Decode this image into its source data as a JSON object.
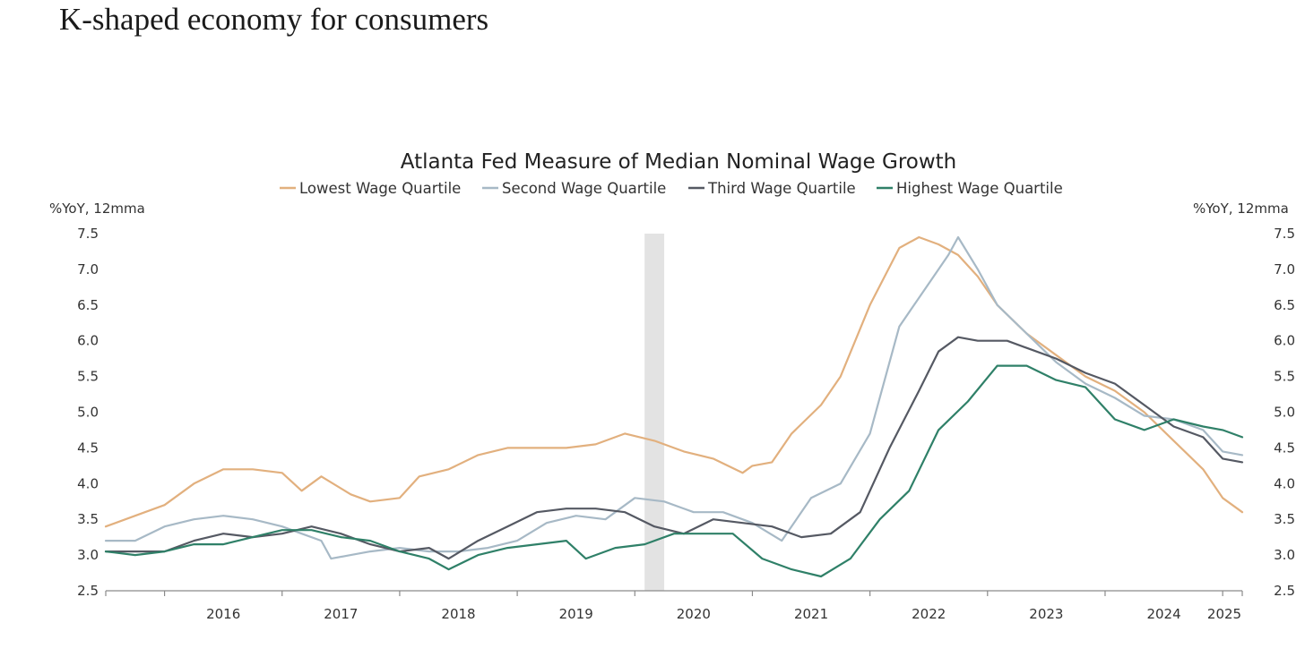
{
  "slide": {
    "title": "K-shaped economy for consumers"
  },
  "chart_data": {
    "type": "line",
    "title": "Atlanta Fed Measure of Median Nominal Wage Growth",
    "ylabel_left": "%YoY, 12mma",
    "ylabel_right": "%YoY, 12mma",
    "ylim": [
      2.5,
      7.5
    ],
    "yticks": [
      "2.5",
      "3.0",
      "3.5",
      "4.0",
      "4.5",
      "5.0",
      "5.5",
      "6.0",
      "6.5",
      "7.0",
      "7.5"
    ],
    "xticks": [
      "2016",
      "2017",
      "2018",
      "2019",
      "2020",
      "2021",
      "2022",
      "2023",
      "2024",
      "2025"
    ],
    "x_domain": [
      "2015-07",
      "2025-03"
    ],
    "legend_position": "top-center",
    "grid": false,
    "shaded_period": {
      "start": "2020-02",
      "end": "2020-04",
      "color": "#e3e3e3"
    },
    "series": [
      {
        "name": "Lowest Wage Quartile",
        "color": "#e2b07e",
        "points": [
          [
            "2015-07",
            3.4
          ],
          [
            "2015-10",
            3.55
          ],
          [
            "2016-01",
            3.7
          ],
          [
            "2016-04",
            4.0
          ],
          [
            "2016-07",
            4.2
          ],
          [
            "2016-10",
            4.2
          ],
          [
            "2017-01",
            4.15
          ],
          [
            "2017-03",
            3.9
          ],
          [
            "2017-05",
            4.1
          ],
          [
            "2017-08",
            3.85
          ],
          [
            "2017-10",
            3.75
          ],
          [
            "2018-01",
            3.8
          ],
          [
            "2018-03",
            4.1
          ],
          [
            "2018-06",
            4.2
          ],
          [
            "2018-09",
            4.4
          ],
          [
            "2018-12",
            4.5
          ],
          [
            "2019-03",
            4.5
          ],
          [
            "2019-06",
            4.5
          ],
          [
            "2019-09",
            4.55
          ],
          [
            "2019-12",
            4.7
          ],
          [
            "2020-03",
            4.6
          ],
          [
            "2020-06",
            4.45
          ],
          [
            "2020-09",
            4.35
          ],
          [
            "2020-12",
            4.15
          ],
          [
            "2021-01",
            4.25
          ],
          [
            "2021-03",
            4.3
          ],
          [
            "2021-05",
            4.7
          ],
          [
            "2021-08",
            5.1
          ],
          [
            "2021-10",
            5.5
          ],
          [
            "2022-01",
            6.5
          ],
          [
            "2022-04",
            7.3
          ],
          [
            "2022-06",
            7.45
          ],
          [
            "2022-08",
            7.35
          ],
          [
            "2022-10",
            7.2
          ],
          [
            "2022-12",
            6.9
          ],
          [
            "2023-02",
            6.5
          ],
          [
            "2023-05",
            6.1
          ],
          [
            "2023-08",
            5.8
          ],
          [
            "2023-11",
            5.5
          ],
          [
            "2024-02",
            5.3
          ],
          [
            "2024-05",
            5.0
          ],
          [
            "2024-08",
            4.6
          ],
          [
            "2024-11",
            4.2
          ],
          [
            "2025-01",
            3.8
          ],
          [
            "2025-03",
            3.6
          ]
        ]
      },
      {
        "name": "Second Wage Quartile",
        "color": "#a7b9c6",
        "points": [
          [
            "2015-07",
            3.2
          ],
          [
            "2015-10",
            3.2
          ],
          [
            "2016-01",
            3.4
          ],
          [
            "2016-04",
            3.5
          ],
          [
            "2016-07",
            3.55
          ],
          [
            "2016-10",
            3.5
          ],
          [
            "2017-01",
            3.4
          ],
          [
            "2017-03",
            3.3
          ],
          [
            "2017-05",
            3.2
          ],
          [
            "2017-06",
            2.95
          ],
          [
            "2017-08",
            3.0
          ],
          [
            "2017-10",
            3.05
          ],
          [
            "2018-01",
            3.1
          ],
          [
            "2018-04",
            3.05
          ],
          [
            "2018-07",
            3.05
          ],
          [
            "2018-10",
            3.1
          ],
          [
            "2019-01",
            3.2
          ],
          [
            "2019-04",
            3.45
          ],
          [
            "2019-07",
            3.55
          ],
          [
            "2019-10",
            3.5
          ],
          [
            "2020-01",
            3.8
          ],
          [
            "2020-04",
            3.75
          ],
          [
            "2020-07",
            3.6
          ],
          [
            "2020-10",
            3.6
          ],
          [
            "2021-01",
            3.45
          ],
          [
            "2021-04",
            3.2
          ],
          [
            "2021-07",
            3.8
          ],
          [
            "2021-10",
            4.0
          ],
          [
            "2022-01",
            4.7
          ],
          [
            "2022-04",
            6.2
          ],
          [
            "2022-07",
            6.8
          ],
          [
            "2022-09",
            7.2
          ],
          [
            "2022-10",
            7.45
          ],
          [
            "2022-12",
            7.0
          ],
          [
            "2023-02",
            6.5
          ],
          [
            "2023-05",
            6.1
          ],
          [
            "2023-08",
            5.7
          ],
          [
            "2023-11",
            5.4
          ],
          [
            "2024-02",
            5.2
          ],
          [
            "2024-05",
            4.95
          ],
          [
            "2024-08",
            4.9
          ],
          [
            "2024-11",
            4.75
          ],
          [
            "2025-01",
            4.45
          ],
          [
            "2025-03",
            4.4
          ]
        ]
      },
      {
        "name": "Third Wage Quartile",
        "color": "#555963",
        "points": [
          [
            "2015-07",
            3.05
          ],
          [
            "2015-10",
            3.05
          ],
          [
            "2016-01",
            3.05
          ],
          [
            "2016-04",
            3.2
          ],
          [
            "2016-07",
            3.3
          ],
          [
            "2016-10",
            3.25
          ],
          [
            "2017-01",
            3.3
          ],
          [
            "2017-04",
            3.4
          ],
          [
            "2017-07",
            3.3
          ],
          [
            "2017-10",
            3.15
          ],
          [
            "2018-01",
            3.05
          ],
          [
            "2018-04",
            3.1
          ],
          [
            "2018-06",
            2.95
          ],
          [
            "2018-09",
            3.2
          ],
          [
            "2018-12",
            3.4
          ],
          [
            "2019-03",
            3.6
          ],
          [
            "2019-06",
            3.65
          ],
          [
            "2019-09",
            3.65
          ],
          [
            "2019-12",
            3.6
          ],
          [
            "2020-03",
            3.4
          ],
          [
            "2020-06",
            3.3
          ],
          [
            "2020-09",
            3.5
          ],
          [
            "2020-12",
            3.45
          ],
          [
            "2021-03",
            3.4
          ],
          [
            "2021-06",
            3.25
          ],
          [
            "2021-09",
            3.3
          ],
          [
            "2021-12",
            3.6
          ],
          [
            "2022-03",
            4.5
          ],
          [
            "2022-06",
            5.3
          ],
          [
            "2022-08",
            5.85
          ],
          [
            "2022-10",
            6.05
          ],
          [
            "2022-12",
            6.0
          ],
          [
            "2023-03",
            6.0
          ],
          [
            "2023-05",
            5.9
          ],
          [
            "2023-08",
            5.75
          ],
          [
            "2023-11",
            5.55
          ],
          [
            "2024-02",
            5.4
          ],
          [
            "2024-05",
            5.1
          ],
          [
            "2024-08",
            4.8
          ],
          [
            "2024-11",
            4.65
          ],
          [
            "2025-01",
            4.35
          ],
          [
            "2025-03",
            4.3
          ]
        ]
      },
      {
        "name": "Highest Wage Quartile",
        "color": "#2f8068",
        "points": [
          [
            "2015-07",
            3.05
          ],
          [
            "2015-10",
            3.0
          ],
          [
            "2016-01",
            3.05
          ],
          [
            "2016-04",
            3.15
          ],
          [
            "2016-07",
            3.15
          ],
          [
            "2016-10",
            3.25
          ],
          [
            "2017-01",
            3.35
          ],
          [
            "2017-04",
            3.35
          ],
          [
            "2017-07",
            3.25
          ],
          [
            "2017-10",
            3.2
          ],
          [
            "2018-01",
            3.05
          ],
          [
            "2018-04",
            2.95
          ],
          [
            "2018-06",
            2.8
          ],
          [
            "2018-09",
            3.0
          ],
          [
            "2018-12",
            3.1
          ],
          [
            "2019-03",
            3.15
          ],
          [
            "2019-06",
            3.2
          ],
          [
            "2019-08",
            2.95
          ],
          [
            "2019-11",
            3.1
          ],
          [
            "2020-02",
            3.15
          ],
          [
            "2020-05",
            3.3
          ],
          [
            "2020-08",
            3.3
          ],
          [
            "2020-11",
            3.3
          ],
          [
            "2021-02",
            2.95
          ],
          [
            "2021-05",
            2.8
          ],
          [
            "2021-08",
            2.7
          ],
          [
            "2021-11",
            2.95
          ],
          [
            "2022-02",
            3.5
          ],
          [
            "2022-05",
            3.9
          ],
          [
            "2022-08",
            4.75
          ],
          [
            "2022-11",
            5.15
          ],
          [
            "2023-02",
            5.65
          ],
          [
            "2023-05",
            5.65
          ],
          [
            "2023-08",
            5.45
          ],
          [
            "2023-11",
            5.35
          ],
          [
            "2024-02",
            4.9
          ],
          [
            "2024-05",
            4.75
          ],
          [
            "2024-08",
            4.9
          ],
          [
            "2024-11",
            4.8
          ],
          [
            "2025-01",
            4.75
          ],
          [
            "2025-03",
            4.65
          ]
        ]
      }
    ]
  }
}
